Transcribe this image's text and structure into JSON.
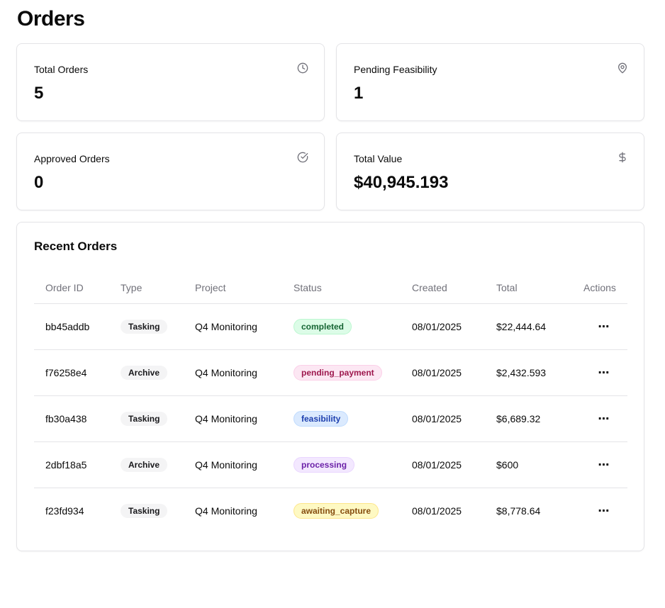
{
  "page": {
    "title": "Orders"
  },
  "stats": [
    {
      "label": "Total Orders",
      "value": "5",
      "icon": "clock-icon"
    },
    {
      "label": "Pending Feasibility",
      "value": "1",
      "icon": "map-pin-icon"
    },
    {
      "label": "Approved Orders",
      "value": "0",
      "icon": "check-circle-icon"
    },
    {
      "label": "Total Value",
      "value": "$40,945.193",
      "icon": "dollar-icon"
    }
  ],
  "recent_orders": {
    "title": "Recent Orders",
    "columns": [
      "Order ID",
      "Type",
      "Project",
      "Status",
      "Created",
      "Total",
      "Actions"
    ],
    "rows": [
      {
        "id": "bb45addb",
        "type": "Tasking",
        "project": "Q4 Monitoring",
        "status": "completed",
        "created": "08/01/2025",
        "total": "$22,444.64",
        "action": "⋯"
      },
      {
        "id": "f76258e4",
        "type": "Archive",
        "project": "Q4 Monitoring",
        "status": "pending_payment",
        "created": "08/01/2025",
        "total": "$2,432.593",
        "action": "⋯"
      },
      {
        "id": "fb30a438",
        "type": "Tasking",
        "project": "Q4 Monitoring",
        "status": "feasibility",
        "created": "08/01/2025",
        "total": "$6,689.32",
        "action": "⋯"
      },
      {
        "id": "2dbf18a5",
        "type": "Archive",
        "project": "Q4 Monitoring",
        "status": "processing",
        "created": "08/01/2025",
        "total": "$600",
        "action": "⋯"
      },
      {
        "id": "f23fd934",
        "type": "Tasking",
        "project": "Q4 Monitoring",
        "status": "awaiting_capture",
        "created": "08/01/2025",
        "total": "$8,778.64",
        "action": "⋯"
      }
    ]
  },
  "status_colors": {
    "completed": "#166534",
    "pending_payment": "#9d174d",
    "feasibility": "#1e40af",
    "processing": "#6b21a8",
    "awaiting_capture": "#854d0e"
  }
}
